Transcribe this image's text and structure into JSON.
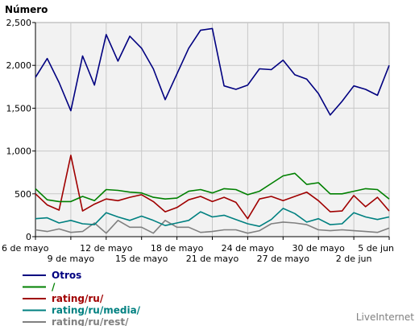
{
  "chart_data": {
    "type": "line",
    "ylabel": "Número",
    "ylim": [
      0,
      2500
    ],
    "yticks": [
      {
        "value": 0,
        "label": "0"
      },
      {
        "value": 500,
        "label": "500"
      },
      {
        "value": 1000,
        "label": "1,000"
      },
      {
        "value": 1500,
        "label": "1,500"
      },
      {
        "value": 2000,
        "label": "2,000"
      },
      {
        "value": 2500,
        "label": "2,500"
      }
    ],
    "x": [
      "6 may",
      "7 may",
      "8 may",
      "9 may",
      "10 may",
      "11 may",
      "12 may",
      "13 may",
      "14 may",
      "15 may",
      "16 may",
      "17 may",
      "18 may",
      "19 may",
      "20 may",
      "21 may",
      "22 may",
      "23 may",
      "24 may",
      "25 may",
      "26 may",
      "27 may",
      "28 may",
      "29 may",
      "30 may",
      "31 may",
      "1 jun",
      "2 jun",
      "3 jun",
      "4 jun",
      "5 jun"
    ],
    "xticks_upper": [
      {
        "index": 0,
        "label": "6 de mayo"
      },
      {
        "index": 6,
        "label": "12 de mayo"
      },
      {
        "index": 12,
        "label": "18 de mayo"
      },
      {
        "index": 18,
        "label": "24 de mayo"
      },
      {
        "index": 24,
        "label": "30 de mayo"
      },
      {
        "index": 30,
        "label": "5 de jun"
      }
    ],
    "xticks_lower": [
      {
        "index": 3,
        "label": "9 de mayo"
      },
      {
        "index": 9,
        "label": "15 de mayo"
      },
      {
        "index": 15,
        "label": "21 de mayo"
      },
      {
        "index": 21,
        "label": "27 de mayo"
      },
      {
        "index": 27,
        "label": "2 de jun"
      }
    ],
    "grid": true,
    "legend_position": "bottom-left",
    "series": [
      {
        "name": "Otros",
        "color": "#000080",
        "values": [
          1860,
          2080,
          1800,
          1470,
          2110,
          1770,
          2360,
          2050,
          2340,
          2200,
          1960,
          1600,
          1900,
          2200,
          2410,
          2430,
          1760,
          1720,
          1770,
          1960,
          1950,
          2060,
          1890,
          1840,
          1670,
          1420,
          1580,
          1760,
          1720,
          1650,
          2000
        ]
      },
      {
        "name": "/",
        "color": "#008000",
        "values": [
          560,
          430,
          410,
          410,
          470,
          420,
          550,
          540,
          520,
          510,
          460,
          440,
          450,
          530,
          550,
          510,
          560,
          550,
          490,
          530,
          620,
          710,
          740,
          610,
          630,
          500,
          500,
          530,
          560,
          550,
          440
        ]
      },
      {
        "name": "rating/ru/",
        "color": "#A00000",
        "values": [
          500,
          370,
          310,
          950,
          300,
          380,
          440,
          420,
          460,
          490,
          410,
          290,
          340,
          430,
          470,
          410,
          460,
          400,
          210,
          440,
          470,
          420,
          470,
          520,
          420,
          290,
          300,
          480,
          350,
          460,
          300
        ]
      },
      {
        "name": "rating/ru/media/",
        "color": "#008080",
        "values": [
          210,
          220,
          160,
          190,
          150,
          140,
          280,
          230,
          190,
          240,
          190,
          130,
          160,
          190,
          290,
          230,
          250,
          200,
          150,
          120,
          200,
          330,
          270,
          170,
          210,
          140,
          150,
          280,
          230,
          200,
          230
        ]
      },
      {
        "name": "rating/ru/rest/",
        "color": "#808080",
        "values": [
          80,
          60,
          90,
          50,
          60,
          160,
          40,
          190,
          110,
          110,
          40,
          190,
          110,
          110,
          50,
          60,
          80,
          80,
          40,
          70,
          150,
          170,
          160,
          140,
          80,
          70,
          80,
          70,
          60,
          50,
          100
        ]
      }
    ]
  },
  "brand": "LiveInternet"
}
